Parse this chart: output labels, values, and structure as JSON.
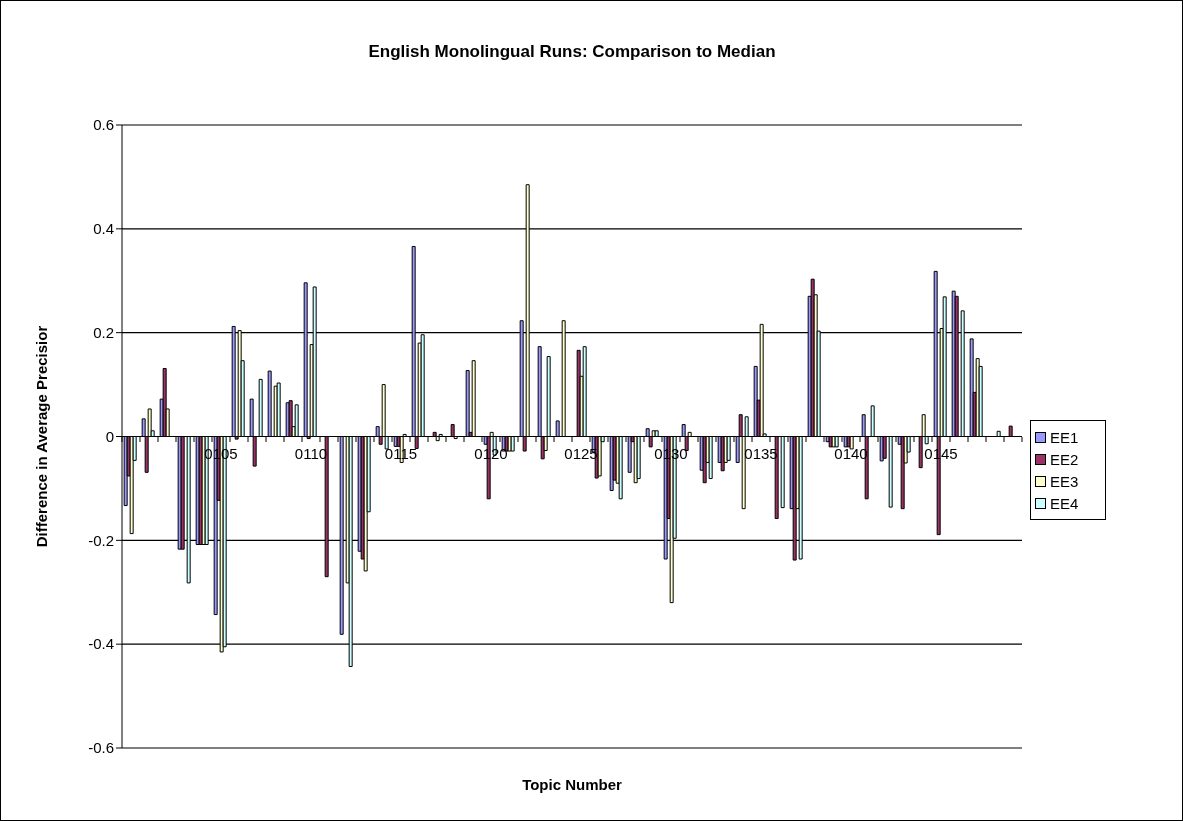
{
  "chart_data": {
    "type": "bar",
    "title": "English Monolingual Runs: Comparison to Median",
    "xlabel": "Topic Number",
    "ylabel": "Difference in Average Precisior",
    "categories": [
      null,
      null,
      null,
      null,
      null,
      "0105",
      null,
      null,
      null,
      null,
      "0110",
      null,
      null,
      null,
      null,
      "0115",
      null,
      null,
      null,
      null,
      "0120",
      null,
      null,
      null,
      null,
      "0125",
      null,
      null,
      null,
      null,
      "0130",
      null,
      null,
      null,
      null,
      "0135",
      null,
      null,
      null,
      null,
      "0140",
      null,
      null,
      null,
      null,
      "0145",
      null,
      null,
      null,
      null
    ],
    "series": [
      {
        "name": "EE1",
        "color": "#9999ff",
        "values": [
          -0.133,
          0.034,
          0.072,
          -0.217,
          -0.208,
          -0.343,
          0.212,
          0.072,
          0.126,
          0.065,
          0.296,
          0,
          -0.381,
          -0.221,
          0.019,
          -0.019,
          0.366,
          0,
          0,
          0.127,
          -0.015,
          -0.028,
          0.223,
          0.173,
          0.03,
          0,
          -0.03,
          -0.104,
          -0.069,
          0.015,
          -0.236,
          0.023,
          -0.065,
          -0.05,
          -0.05,
          0.135,
          0,
          -0.139,
          0.27,
          -0.01,
          -0.02,
          0.042,
          -0.047,
          -0.015,
          0,
          0.318,
          0.28,
          0.188,
          0,
          0
        ]
      },
      {
        "name": "EE2",
        "color": "#993366",
        "values": [
          -0.076,
          -0.069,
          0.131,
          -0.217,
          -0.208,
          -0.123,
          -0.005,
          -0.057,
          0,
          0.069,
          -0.004,
          -0.27,
          0,
          -0.236,
          -0.015,
          -0.019,
          -0.023,
          0.008,
          0.023,
          0.008,
          -0.12,
          -0.028,
          -0.028,
          -0.043,
          0,
          0.166,
          -0.08,
          -0.084,
          -0.01,
          -0.02,
          -0.158,
          -0.027,
          -0.089,
          -0.066,
          0.042,
          0.07,
          -0.158,
          -0.238,
          0.303,
          -0.02,
          -0.02,
          -0.12,
          -0.042,
          -0.139,
          -0.06,
          -0.189,
          0.27,
          0.085,
          0,
          0.02
        ]
      },
      {
        "name": "EE3",
        "color": "#ffffcc",
        "values": [
          -0.187,
          0.053,
          0.053,
          0,
          -0.208,
          -0.415,
          0.204,
          0,
          0.097,
          0.019,
          0.177,
          0,
          -0.282,
          -0.259,
          0.1,
          -0.05,
          0.18,
          -0.008,
          -0.004,
          0.146,
          0.008,
          -0.028,
          0.485,
          -0.027,
          0.223,
          0.116,
          -0.076,
          -0.09,
          -0.089,
          0.011,
          -0.32,
          0.008,
          -0.05,
          -0.05,
          -0.139,
          0.216,
          0,
          -0.139,
          0.273,
          -0.02,
          -0.024,
          0,
          0,
          -0.051,
          0.042,
          0.208,
          0,
          0.15,
          0,
          0
        ]
      },
      {
        "name": "EE4",
        "color": "#ccffff",
        "values": [
          -0.046,
          0.011,
          0,
          -0.282,
          -0.208,
          -0.405,
          0.146,
          0.11,
          0.103,
          0.061,
          0.288,
          0,
          -0.443,
          -0.145,
          -0.024,
          0.004,
          0.196,
          0.004,
          0,
          0,
          -0.036,
          -0.028,
          0,
          0.154,
          0,
          0.173,
          -0.01,
          -0.12,
          -0.081,
          0.011,
          -0.196,
          0,
          -0.081,
          -0.046,
          0.038,
          0.005,
          -0.137,
          -0.236,
          0.203,
          -0.02,
          0,
          0.059,
          -0.136,
          -0.03,
          -0.014,
          0.269,
          0.242,
          0.135,
          0.01,
          0
        ]
      }
    ],
    "ylim": [
      -0.6,
      0.6
    ],
    "yticks": [
      -0.6,
      -0.4,
      -0.2,
      0,
      0.2,
      0.4,
      0.6
    ],
    "grid": "y",
    "legend": "right"
  }
}
